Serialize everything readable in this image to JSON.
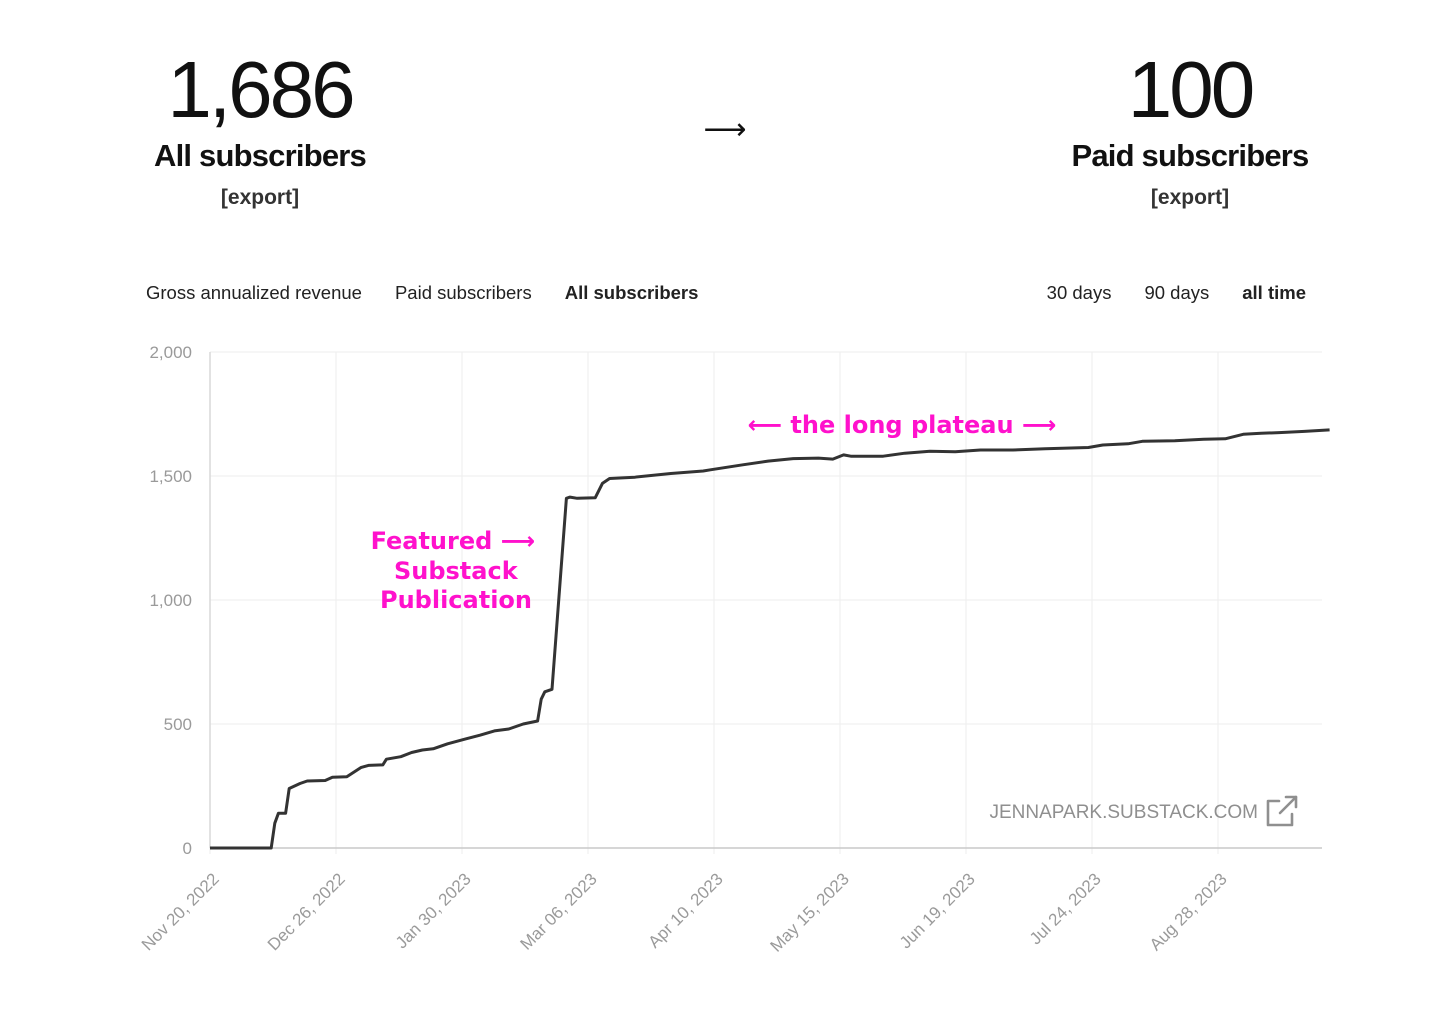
{
  "summary": {
    "all_value": "1,686",
    "all_label": "All subscribers",
    "all_export": "[export]",
    "flow_arrow": "⟶",
    "paid_value": "100",
    "paid_label": "Paid subscribers",
    "paid_export": "[export]"
  },
  "tabs": [
    {
      "label": "Gross annualized revenue",
      "active": false
    },
    {
      "label": "Paid subscribers",
      "active": false
    },
    {
      "label": "All subscribers",
      "active": true
    }
  ],
  "ranges": [
    {
      "label": "30 days",
      "active": false
    },
    {
      "label": "90 days",
      "active": false
    },
    {
      "label": "all time",
      "active": true
    }
  ],
  "watermark": "JENNAPARK.SUBSTACK.COM",
  "colors": {
    "line": "#333333",
    "annotation": "#ff11cc",
    "grid": "#eeeeee",
    "axis_text": "#9a9a9a"
  },
  "chart_data": {
    "type": "line",
    "title": "",
    "xlabel": "",
    "ylabel": "",
    "ylim": [
      0,
      2000
    ],
    "yticks": [
      0,
      500,
      1000,
      1500,
      2000
    ],
    "ytick_labels": [
      "0",
      "500",
      "1,000",
      "1,500",
      "2,000"
    ],
    "xticks": [
      "Nov 20, 2022",
      "Dec 26, 2022",
      "Jan 30, 2023",
      "Mar 06, 2023",
      "Apr 10, 2023",
      "May 15, 2023",
      "Jun 19, 2023",
      "Jul 24, 2023",
      "Aug 28, 2023"
    ],
    "grid": true,
    "series": [
      {
        "values": [
          [
            "2022-11-20",
            0
          ],
          [
            "2022-12-07",
            0
          ],
          [
            "2022-12-08",
            100
          ],
          [
            "2022-12-09",
            140
          ],
          [
            "2022-12-11",
            140
          ],
          [
            "2022-12-12",
            240
          ],
          [
            "2022-12-15",
            260
          ],
          [
            "2022-12-17",
            270
          ],
          [
            "2022-12-22",
            272
          ],
          [
            "2022-12-24",
            285
          ],
          [
            "2022-12-28",
            287
          ],
          [
            "2023-01-01",
            325
          ],
          [
            "2023-01-03",
            333
          ],
          [
            "2023-01-07",
            335
          ],
          [
            "2023-01-08",
            358
          ],
          [
            "2023-01-12",
            368
          ],
          [
            "2023-01-15",
            385
          ],
          [
            "2023-01-18",
            395
          ],
          [
            "2023-01-21",
            400
          ],
          [
            "2023-01-25",
            420
          ],
          [
            "2023-01-30",
            440
          ],
          [
            "2023-02-03",
            455
          ],
          [
            "2023-02-07",
            472
          ],
          [
            "2023-02-11",
            480
          ],
          [
            "2023-02-15",
            500
          ],
          [
            "2023-02-19",
            512
          ],
          [
            "2023-02-20",
            600
          ],
          [
            "2023-02-21",
            630
          ],
          [
            "2023-02-23",
            640
          ],
          [
            "2023-02-27",
            1410
          ],
          [
            "2023-02-28",
            1415
          ],
          [
            "2023-03-02",
            1410
          ],
          [
            "2023-03-07",
            1412
          ],
          [
            "2023-03-09",
            1470
          ],
          [
            "2023-03-11",
            1490
          ],
          [
            "2023-03-18",
            1495
          ],
          [
            "2023-03-28",
            1510
          ],
          [
            "2023-04-06",
            1520
          ],
          [
            "2023-04-08",
            1525
          ],
          [
            "2023-04-17",
            1545
          ],
          [
            "2023-04-24",
            1560
          ],
          [
            "2023-05-01",
            1570
          ],
          [
            "2023-05-08",
            1572
          ],
          [
            "2023-05-12",
            1568
          ],
          [
            "2023-05-15",
            1585
          ],
          [
            "2023-05-17",
            1580
          ],
          [
            "2023-05-26",
            1580
          ],
          [
            "2023-06-01",
            1592
          ],
          [
            "2023-06-08",
            1600
          ],
          [
            "2023-06-15",
            1598
          ],
          [
            "2023-06-22",
            1605
          ],
          [
            "2023-07-01",
            1605
          ],
          [
            "2023-07-10",
            1610
          ],
          [
            "2023-07-22",
            1615
          ],
          [
            "2023-07-26",
            1625
          ],
          [
            "2023-08-02",
            1630
          ],
          [
            "2023-08-06",
            1640
          ],
          [
            "2023-08-15",
            1642
          ],
          [
            "2023-08-23",
            1648
          ],
          [
            "2023-08-29",
            1650
          ],
          [
            "2023-09-03",
            1668
          ],
          [
            "2023-09-08",
            1672
          ],
          [
            "2023-09-13",
            1675
          ],
          [
            "2023-09-20",
            1680
          ],
          [
            "2023-09-27",
            1686
          ]
        ]
      }
    ],
    "annotations": [
      {
        "lines": [
          "Featured ⟶",
          "Substack",
          "Publication"
        ]
      },
      {
        "text": "⟵ the long plateau ⟶"
      }
    ]
  }
}
